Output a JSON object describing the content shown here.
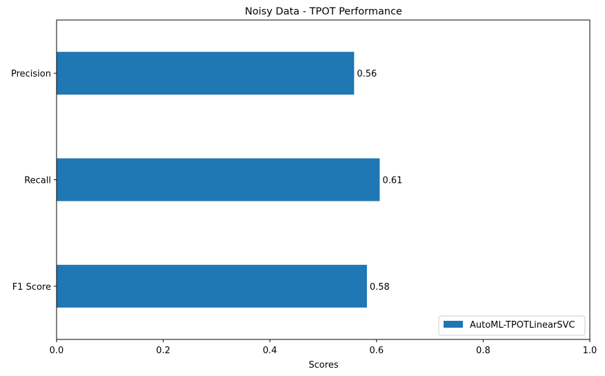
{
  "chart_data": {
    "type": "bar",
    "orientation": "horizontal",
    "title": "Noisy Data - TPOT Performance",
    "xlabel": "Scores",
    "ylabel": "",
    "xlim": [
      0.0,
      1.0
    ],
    "xticks": [
      "0.0",
      "0.2",
      "0.4",
      "0.6",
      "0.8",
      "1.0"
    ],
    "categories": [
      "Precision",
      "Recall",
      "F1 Score"
    ],
    "series": [
      {
        "name": "AutoML-TPOTLinearSVC",
        "values": [
          0.558,
          0.606,
          0.582
        ],
        "labels": [
          "0.56",
          "0.61",
          "0.58"
        ],
        "color": "#1f77b4"
      }
    ],
    "grid": false,
    "legend": "lower-right"
  }
}
